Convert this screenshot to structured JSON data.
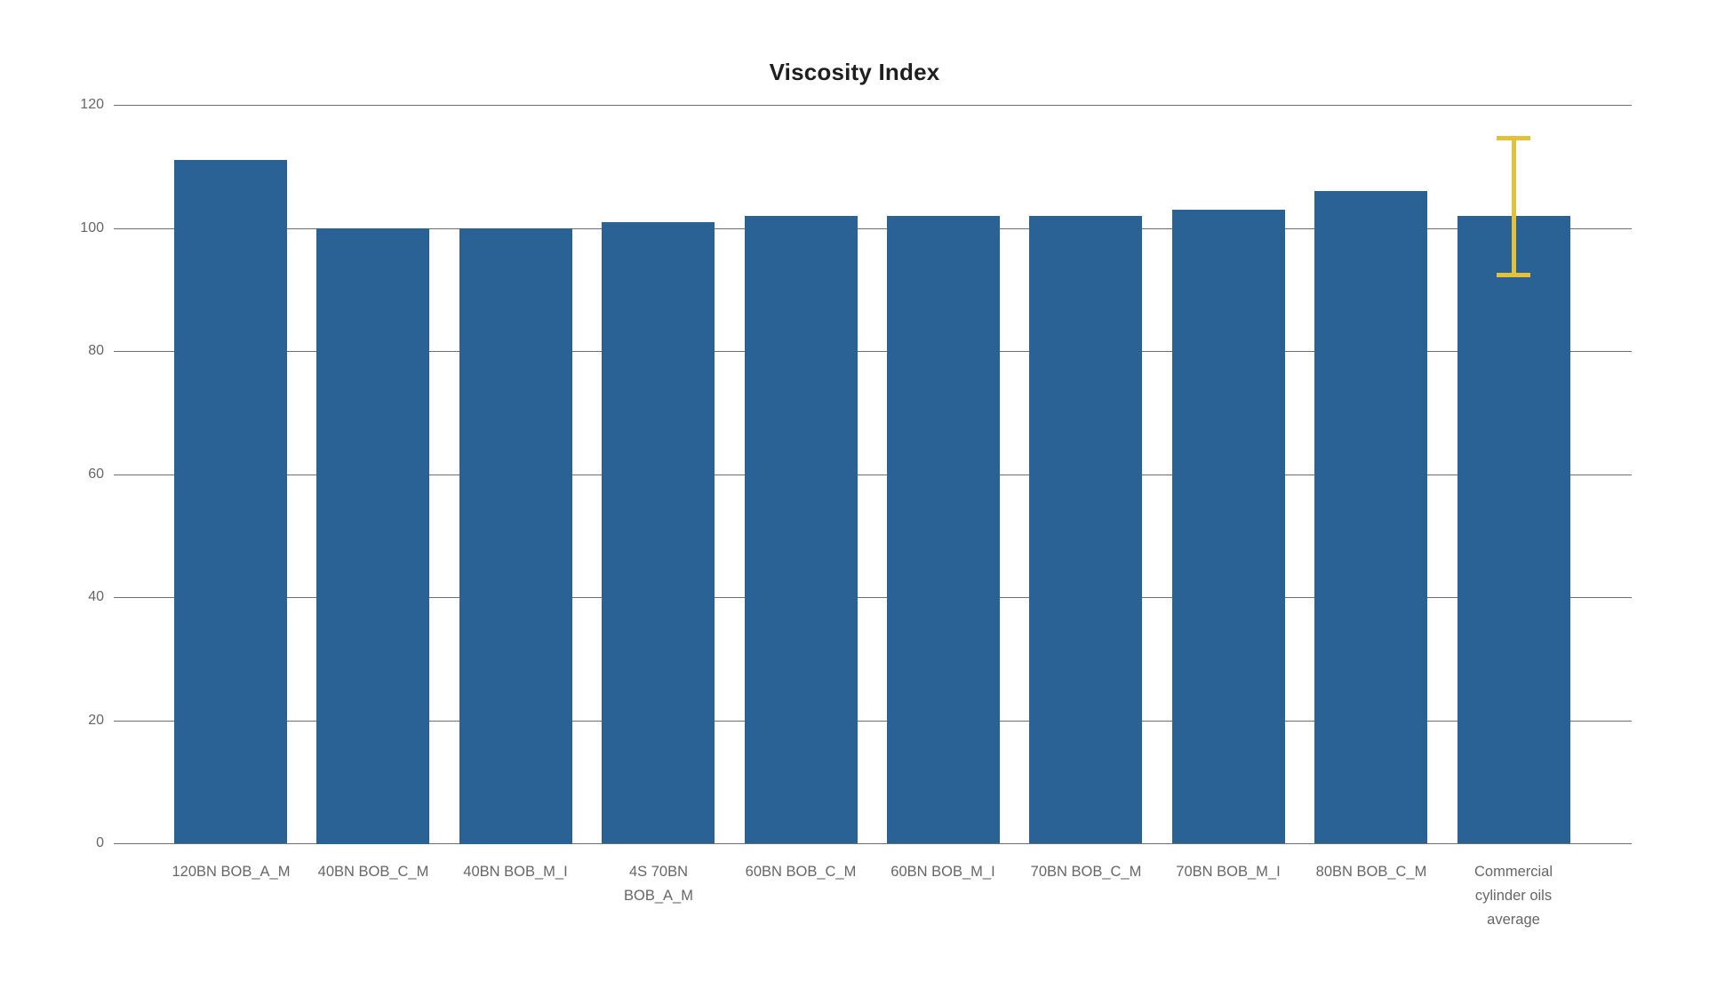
{
  "chart_data": {
    "type": "bar",
    "title": "Viscosity Index",
    "categories": [
      "120BN BOB_A_M",
      "40BN BOB_C_M",
      "40BN BOB_M_I",
      "4S 70BN BOB_A_M",
      "60BN BOB_C_M",
      "60BN BOB_M_I",
      "70BN BOB_C_M",
      "70BN BOB_M_I",
      "80BN BOB_C_M",
      "Commercial cylinder oils average"
    ],
    "values": [
      111,
      100,
      100,
      101,
      102,
      102,
      102,
      103,
      106,
      102
    ],
    "error_bar": {
      "category": "Commercial cylinder oils average",
      "index": 9,
      "low": 92,
      "high": 115
    },
    "xlabel": "",
    "ylabel": "",
    "ylim": [
      0,
      120
    ],
    "yticks": [
      0,
      20,
      40,
      60,
      80,
      100,
      120
    ],
    "grid": true,
    "legend_position": "none",
    "colors": {
      "bar": "#2a6295",
      "error_bar": "#e3c139",
      "gridline": "#6e6e6e",
      "axis_label": "#666666",
      "title": "#1f1f1f",
      "background": "#ffffff"
    }
  }
}
